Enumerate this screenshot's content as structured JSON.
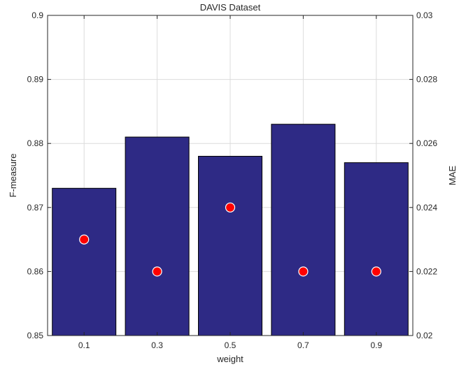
{
  "chart_data": {
    "type": "bar",
    "title": "DAVIS Dataset",
    "xlabel": "weight",
    "ylabel_left": "F-measure",
    "ylabel_right": "MAE",
    "categories": [
      "0.1",
      "0.3",
      "0.5",
      "0.7",
      "0.9"
    ],
    "series": [
      {
        "axis": "left",
        "kind": "bar",
        "values": [
          0.873,
          0.881,
          0.878,
          0.883,
          0.877
        ],
        "color": "#2e2a85"
      },
      {
        "axis": "right",
        "kind": "marker",
        "values": [
          0.023,
          0.022,
          0.024,
          0.022,
          0.022
        ],
        "color": "#ff0000"
      }
    ],
    "ylim_left": [
      0.85,
      0.9
    ],
    "ylim_right": [
      0.02,
      0.03
    ],
    "yticks_left": [
      "0.85",
      "0.86",
      "0.87",
      "0.88",
      "0.89",
      "0.9"
    ],
    "yticks_right": [
      "0.02",
      "0.022",
      "0.024",
      "0.026",
      "0.028",
      "0.03"
    ],
    "grid": true
  }
}
